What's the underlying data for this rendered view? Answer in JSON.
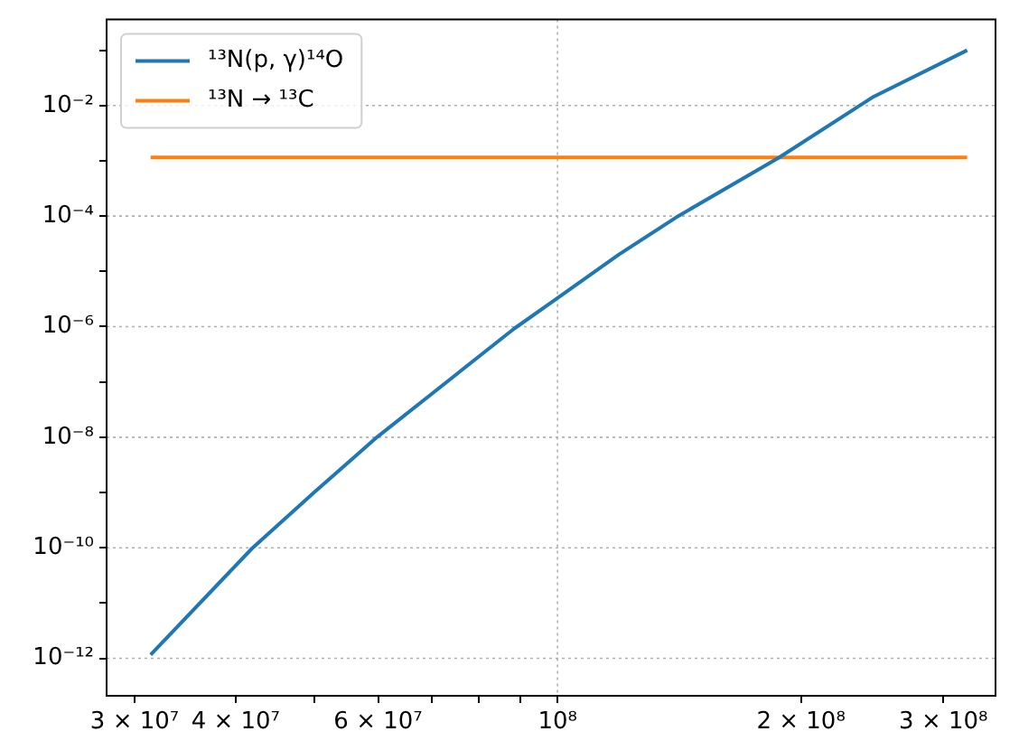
{
  "chart_data": {
    "type": "line",
    "log": "xy",
    "grid": true,
    "legend": "top left",
    "xlim": [
      27700000.0,
      348000000.0
    ],
    "ylim": [
      2.1e-13,
      0.36
    ],
    "xticks": [
      {
        "value": 30000000.0,
        "label": "3 × 10⁷"
      },
      {
        "value": 40000000.0,
        "label": "4 × 10⁷"
      },
      {
        "value": 50000000.0,
        "label": null
      },
      {
        "value": 60000000.0,
        "label": "6 × 10⁷"
      },
      {
        "value": 70000000.0,
        "label": null
      },
      {
        "value": 80000000.0,
        "label": null
      },
      {
        "value": 90000000.0,
        "label": null
      },
      {
        "value": 100000000.0,
        "label": "10⁸"
      },
      {
        "value": 200000000.0,
        "label": "2 × 10⁸"
      },
      {
        "value": 300000000.0,
        "label": "3 × 10⁸"
      }
    ],
    "yticks": [
      {
        "value": 1e-12,
        "label": "10⁻¹²"
      },
      {
        "value": 1e-11,
        "label": null
      },
      {
        "value": 1e-10,
        "label": "10⁻¹⁰"
      },
      {
        "value": 1e-09,
        "label": null
      },
      {
        "value": 1e-08,
        "label": "10⁻⁸"
      },
      {
        "value": 1e-07,
        "label": null
      },
      {
        "value": 1e-06,
        "label": "10⁻⁶"
      },
      {
        "value": 1e-05,
        "label": null
      },
      {
        "value": 0.0001,
        "label": "10⁻⁴"
      },
      {
        "value": 0.001,
        "label": null
      },
      {
        "value": 0.01,
        "label": "10⁻²"
      },
      {
        "value": 0.1,
        "label": null
      }
    ],
    "series": [
      {
        "name": "¹³N(p, γ)¹⁴O",
        "color": "#1f77b4",
        "x": [
          31400000.0,
          41900000.0,
          50000000.0,
          59900000.0,
          88300000.0,
          100000000.0,
          119000000.0,
          141000000.0,
          188000000.0,
          246000000.0,
          321000000.0
        ],
        "values": [
          1.16e-12,
          9.7e-11,
          1e-09,
          1.02e-08,
          9.1e-07,
          3.3e-06,
          2e-05,
          0.0001,
          0.00115,
          0.0145,
          0.1
        ]
      },
      {
        "name": "¹³N → ¹³C",
        "color": "#ff7f0e",
        "x": [
          31400000.0,
          321000000.0
        ],
        "values": [
          0.00115,
          0.00115
        ]
      }
    ]
  }
}
